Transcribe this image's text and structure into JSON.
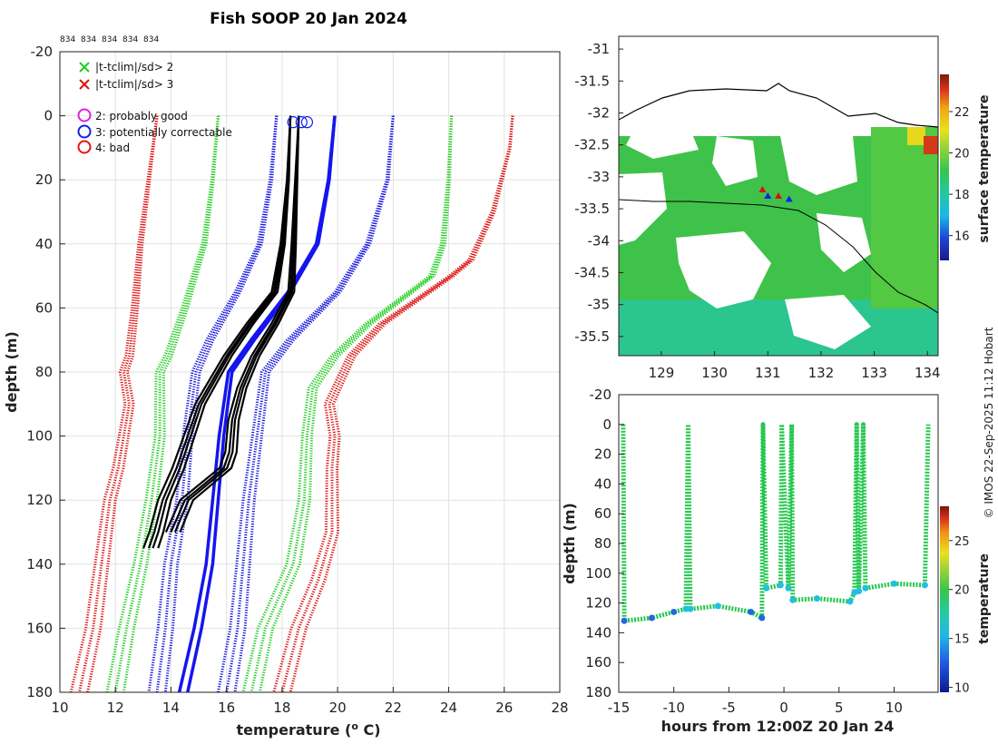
{
  "chart_data": [
    {
      "type": "line",
      "title": "Fish SOOP 20 Jan 2024",
      "station_ids": [
        "834",
        "834",
        "834",
        "834",
        "834"
      ],
      "xlabel": "temperature (° C)",
      "ylabel": "depth (m)",
      "xlim": [
        10,
        28
      ],
      "ylim": [
        -20,
        180
      ],
      "y_reversed": true,
      "xticks": [
        10,
        12,
        14,
        16,
        18,
        20,
        22,
        24,
        26,
        28
      ],
      "yticks": [
        -20,
        0,
        20,
        40,
        60,
        80,
        100,
        120,
        140,
        160,
        180
      ],
      "grid": true,
      "legend_flags": [
        {
          "marker": "x",
          "color": "#22cc22",
          "label": "|t-tclim|/sd> 2"
        },
        {
          "marker": "x",
          "color": "#dd1111",
          "label": "|t-tclim|/sd> 3"
        }
      ],
      "legend_qc": [
        {
          "marker": "o",
          "color": "#e020e0",
          "label": "2: probably good"
        },
        {
          "marker": "o",
          "color": "#1020ee",
          "label": "3: potentially correctable"
        },
        {
          "marker": "o",
          "color": "#ee1010",
          "label": "4: bad"
        }
      ],
      "series": [
        {
          "name": "climatology -3sd",
          "color": "#dd1111",
          "style": "dotted",
          "depth": [
            0,
            20,
            40,
            60,
            75,
            80,
            90,
            100,
            110,
            120,
            140,
            160,
            180
          ],
          "values": [
            13.5,
            13.2,
            12.9,
            12.7,
            12.5,
            12.3,
            12.5,
            12.3,
            12.1,
            11.8,
            11.5,
            11.2,
            10.7
          ]
        },
        {
          "name": "climatology -2sd",
          "color": "#22cc22",
          "style": "dotted",
          "depth": [
            0,
            20,
            40,
            60,
            75,
            80,
            100,
            120,
            140,
            160,
            180
          ],
          "values": [
            15.7,
            15.5,
            15.2,
            14.5,
            13.9,
            13.6,
            13.6,
            13.3,
            12.9,
            12.4,
            12.0
          ]
        },
        {
          "name": "climatology -1sd",
          "color": "#1515dd",
          "style": "dotted",
          "depth": [
            0,
            20,
            40,
            55,
            70,
            80,
            100,
            120,
            140,
            160,
            180
          ],
          "values": [
            17.8,
            17.6,
            17.2,
            16.4,
            15.4,
            14.9,
            14.6,
            14.4,
            14.0,
            13.8,
            13.5
          ]
        },
        {
          "name": "climatology mean",
          "color": "#1515ee",
          "style": "solid",
          "depth": [
            0,
            20,
            40,
            55,
            70,
            80,
            100,
            120,
            140,
            160,
            180
          ],
          "values": [
            19.9,
            19.7,
            19.3,
            18.3,
            17.0,
            16.2,
            15.9,
            15.7,
            15.5,
            15.1,
            14.6
          ]
        },
        {
          "name": "climatology +1sd",
          "color": "#1515dd",
          "style": "dotted",
          "depth": [
            0,
            20,
            40,
            55,
            70,
            80,
            100,
            120,
            140,
            160,
            180
          ],
          "values": [
            22.0,
            21.8,
            21.1,
            20.0,
            18.3,
            17.4,
            17.1,
            16.8,
            16.6,
            16.4,
            16.0
          ]
        },
        {
          "name": "climatology +2sd",
          "color": "#22cc22",
          "style": "dotted",
          "depth": [
            0,
            20,
            40,
            50,
            65,
            75,
            85,
            100,
            120,
            140,
            150,
            160,
            180
          ],
          "values": [
            24.1,
            24.0,
            23.8,
            23.4,
            21.1,
            19.9,
            19.1,
            18.9,
            18.8,
            18.4,
            17.9,
            17.4,
            16.9
          ]
        },
        {
          "name": "climatology +3sd",
          "color": "#dd1111",
          "style": "dotted",
          "depth": [
            0,
            10,
            30,
            45,
            50,
            65,
            75,
            90,
            100,
            110,
            130,
            145,
            160,
            180
          ],
          "values": [
            26.3,
            26.2,
            25.6,
            24.8,
            24.1,
            21.6,
            20.5,
            19.7,
            19.9,
            19.8,
            19.8,
            19.3,
            18.6,
            18.0
          ]
        },
        {
          "name": "fish profiles (envelope west)",
          "color": "#000000",
          "style": "solid",
          "depth": [
            0,
            20,
            40,
            55,
            65,
            75,
            90,
            100,
            110,
            120,
            130,
            135
          ],
          "values": [
            18.3,
            18.2,
            18.0,
            17.7,
            16.8,
            16.0,
            15.0,
            14.6,
            14.2,
            13.7,
            13.4,
            13.2
          ]
        },
        {
          "name": "fish profiles (envelope east)",
          "color": "#000000",
          "style": "solid",
          "depth": [
            0,
            20,
            40,
            55,
            65,
            75,
            85,
            95,
            105,
            110,
            120,
            130
          ],
          "values": [
            18.6,
            18.5,
            18.4,
            18.3,
            17.7,
            17.0,
            16.5,
            16.2,
            16.1,
            15.9,
            14.5,
            14.0
          ]
        }
      ],
      "qc_markers": [
        {
          "depth": 2,
          "temperature": 18.4,
          "flag": "3: potentially correctable"
        },
        {
          "depth": 2,
          "temperature": 18.7,
          "flag": "3: potentially correctable"
        },
        {
          "depth": 2,
          "temperature": 18.9,
          "flag": "3: potentially correctable"
        }
      ]
    },
    {
      "type": "heatmap",
      "xlim": [
        128.2,
        134.2
      ],
      "ylim": [
        -35.8,
        -30.8
      ],
      "xticks": [
        129,
        130,
        131,
        132,
        133,
        134
      ],
      "yticks": [
        -31,
        -31.5,
        -32,
        -32.5,
        -33,
        -33.5,
        -34,
        -34.5,
        -35,
        -35.5
      ],
      "colorbar": {
        "label": "surface temperature",
        "ticks": [
          16,
          18,
          20,
          22
        ],
        "range": [
          14.8,
          23.8
        ]
      },
      "track_points": [
        {
          "lon": 130.9,
          "lat": -33.2
        },
        {
          "lon": 131.0,
          "lat": -33.3
        },
        {
          "lon": 131.2,
          "lat": -33.3
        },
        {
          "lon": 131.4,
          "lat": -33.35
        }
      ]
    },
    {
      "type": "scatter",
      "xlabel": "hours from 12:00Z 20 Jan 24",
      "ylabel": "depth (m)",
      "xlim": [
        -15,
        14
      ],
      "ylim": [
        -20,
        180
      ],
      "y_reversed": true,
      "xticks": [
        -15,
        -10,
        -5,
        0,
        5,
        10
      ],
      "yticks": [
        -20,
        0,
        20,
        40,
        60,
        80,
        100,
        120,
        140,
        160,
        180
      ],
      "colorbar": {
        "label": "temperature",
        "ticks": [
          10,
          15,
          20,
          25
        ],
        "range": [
          9.5,
          28.5
        ]
      },
      "points": [
        {
          "t": -14.6,
          "d": 0
        },
        {
          "t": -14.5,
          "d": 132
        },
        {
          "t": -12,
          "d": 130
        },
        {
          "t": -10,
          "d": 126
        },
        {
          "t": -8.9,
          "d": 124
        },
        {
          "t": -8.7,
          "d": 0
        },
        {
          "t": -8.5,
          "d": 124
        },
        {
          "t": -6,
          "d": 122
        },
        {
          "t": -3,
          "d": 126
        },
        {
          "t": -2,
          "d": 130
        },
        {
          "t": -1.9,
          "d": 0
        },
        {
          "t": -1.6,
          "d": 110
        },
        {
          "t": -0.3,
          "d": 108
        },
        {
          "t": -0.2,
          "d": 0
        },
        {
          "t": 0.4,
          "d": 110
        },
        {
          "t": 0.7,
          "d": 0
        },
        {
          "t": 0.8,
          "d": 118
        },
        {
          "t": 3,
          "d": 117
        },
        {
          "t": 6,
          "d": 119
        },
        {
          "t": 6.4,
          "d": 113
        },
        {
          "t": 6.6,
          "d": 0
        },
        {
          "t": 6.8,
          "d": 112
        },
        {
          "t": 7.2,
          "d": 0
        },
        {
          "t": 7.4,
          "d": 110
        },
        {
          "t": 10,
          "d": 107
        },
        {
          "t": 12.8,
          "d": 108
        },
        {
          "t": 13.1,
          "d": 0
        }
      ]
    }
  ],
  "credit": "© IMOS 22-Sep-2025 11:12 Hobart"
}
